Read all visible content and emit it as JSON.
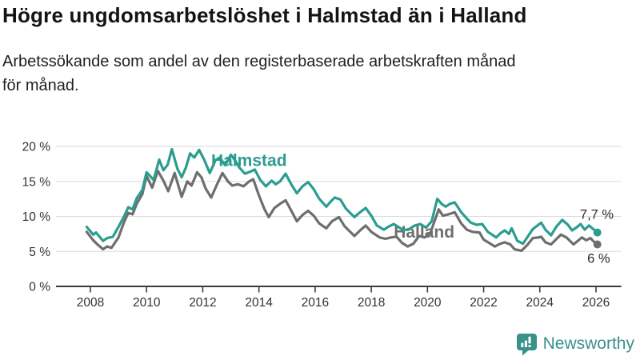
{
  "header": {
    "title": "Högre ungdomsarbetslöshet i Halmstad än i Halland",
    "subtitle": "Arbetssökande som andel av den registerbaserade arbetskraften månad för månad.",
    "subtitle_line1": "Arbetssökande som andel av den registerbaserade arbetskraften månad",
    "subtitle_line2": "för månad."
  },
  "chart_data": {
    "type": "line",
    "title": "Högre ungdomsarbetslöshet i Halmstad än i Halland",
    "subtitle": "Arbetssökande som andel av den registerbaserade arbetskraften månad för månad.",
    "unit": "percent of registered labour force",
    "grid": true,
    "legend_position": "inline-labels",
    "x_axis": {
      "range": [
        2007.8,
        2026.9
      ],
      "ticks": [
        2008,
        2010,
        2012,
        2014,
        2016,
        2018,
        2020,
        2022,
        2024,
        2026
      ]
    },
    "y_axis": {
      "range": [
        0,
        20
      ],
      "ticks": [
        0,
        5,
        10,
        15,
        20
      ],
      "tick_suffix": " %"
    },
    "colors": {
      "axis": "#3c3c3c",
      "gridline": "#dbdbdb",
      "halmstad": "#2a9d8f",
      "halland": "#6e6e6e"
    },
    "series": [
      {
        "name": "Halmstad",
        "color": "#2a9d8f",
        "latest_value": 7.7,
        "label": {
          "text": "Halmstad",
          "year": 2012.3,
          "value": 17.2,
          "anchor": "start"
        },
        "end_label": {
          "text": "7,7 %",
          "year": 2026.63,
          "value": 9.65,
          "anchor": "end"
        },
        "points": [
          [
            2007.87,
            8.5
          ],
          [
            2008.1,
            7.4
          ],
          [
            2008.2,
            7.7
          ],
          [
            2008.45,
            6.5
          ],
          [
            2008.6,
            6.9
          ],
          [
            2008.8,
            7.1
          ],
          [
            2009.0,
            8.5
          ],
          [
            2009.2,
            10.0
          ],
          [
            2009.35,
            11.3
          ],
          [
            2009.5,
            11.0
          ],
          [
            2009.65,
            12.6
          ],
          [
            2009.85,
            13.8
          ],
          [
            2010.0,
            16.3
          ],
          [
            2010.1,
            15.9
          ],
          [
            2010.25,
            15.2
          ],
          [
            2010.45,
            18.1
          ],
          [
            2010.6,
            16.6
          ],
          [
            2010.75,
            17.4
          ],
          [
            2010.9,
            19.6
          ],
          [
            2011.1,
            16.8
          ],
          [
            2011.25,
            15.6
          ],
          [
            2011.4,
            17.0
          ],
          [
            2011.55,
            19.0
          ],
          [
            2011.7,
            18.4
          ],
          [
            2011.87,
            19.5
          ],
          [
            2012.05,
            18.1
          ],
          [
            2012.25,
            16.2
          ],
          [
            2012.45,
            18.0
          ],
          [
            2012.6,
            18.4
          ],
          [
            2012.8,
            17.3
          ],
          [
            2013.0,
            18.8
          ],
          [
            2013.15,
            18.0
          ],
          [
            2013.3,
            17.0
          ],
          [
            2013.5,
            16.1
          ],
          [
            2013.7,
            16.4
          ],
          [
            2013.85,
            16.7
          ],
          [
            2014.05,
            15.2
          ],
          [
            2014.25,
            14.3
          ],
          [
            2014.45,
            15.1
          ],
          [
            2014.6,
            14.6
          ],
          [
            2014.75,
            15.0
          ],
          [
            2014.95,
            16.1
          ],
          [
            2015.15,
            14.6
          ],
          [
            2015.35,
            13.3
          ],
          [
            2015.55,
            14.3
          ],
          [
            2015.75,
            14.9
          ],
          [
            2015.95,
            13.9
          ],
          [
            2016.15,
            12.5
          ],
          [
            2016.4,
            11.4
          ],
          [
            2016.55,
            12.1
          ],
          [
            2016.7,
            12.7
          ],
          [
            2016.9,
            12.4
          ],
          [
            2017.1,
            11.1
          ],
          [
            2017.4,
            9.9
          ],
          [
            2017.6,
            10.6
          ],
          [
            2017.8,
            11.2
          ],
          [
            2018.0,
            10.1
          ],
          [
            2018.2,
            8.7
          ],
          [
            2018.45,
            8.1
          ],
          [
            2018.6,
            8.5
          ],
          [
            2018.8,
            8.9
          ],
          [
            2019.0,
            8.4
          ],
          [
            2019.15,
            8.0
          ],
          [
            2019.35,
            8.2
          ],
          [
            2019.55,
            8.7
          ],
          [
            2019.75,
            8.9
          ],
          [
            2019.95,
            8.4
          ],
          [
            2020.15,
            9.3
          ],
          [
            2020.35,
            12.5
          ],
          [
            2020.5,
            11.8
          ],
          [
            2020.65,
            11.4
          ],
          [
            2020.8,
            11.8
          ],
          [
            2020.97,
            12.0
          ],
          [
            2021.2,
            10.6
          ],
          [
            2021.4,
            9.7
          ],
          [
            2021.55,
            9.1
          ],
          [
            2021.75,
            8.8
          ],
          [
            2021.95,
            8.9
          ],
          [
            2022.15,
            7.8
          ],
          [
            2022.45,
            7.0
          ],
          [
            2022.6,
            7.6
          ],
          [
            2022.75,
            8.0
          ],
          [
            2022.9,
            7.5
          ],
          [
            2023.0,
            8.3
          ],
          [
            2023.2,
            6.5
          ],
          [
            2023.4,
            6.1
          ],
          [
            2023.55,
            7.0
          ],
          [
            2023.75,
            8.2
          ],
          [
            2023.95,
            8.8
          ],
          [
            2024.05,
            9.1
          ],
          [
            2024.2,
            8.1
          ],
          [
            2024.4,
            7.3
          ],
          [
            2024.6,
            8.6
          ],
          [
            2024.8,
            9.5
          ],
          [
            2025.0,
            8.8
          ],
          [
            2025.15,
            8.0
          ],
          [
            2025.3,
            8.4
          ],
          [
            2025.45,
            8.9
          ],
          [
            2025.6,
            8.1
          ],
          [
            2025.75,
            8.7
          ],
          [
            2025.9,
            8.2
          ],
          [
            2026.05,
            7.7
          ]
        ]
      },
      {
        "name": "Halland",
        "color": "#6e6e6e",
        "latest_value": 6.0,
        "label": {
          "text": "Halland",
          "year": 2018.8,
          "value": 7.0,
          "anchor": "start"
        },
        "end_label": {
          "text": "6 %",
          "year": 2026.5,
          "value": 3.35,
          "anchor": "end"
        },
        "points": [
          [
            2007.87,
            7.8
          ],
          [
            2008.1,
            6.6
          ],
          [
            2008.25,
            6.0
          ],
          [
            2008.45,
            5.3
          ],
          [
            2008.6,
            5.7
          ],
          [
            2008.75,
            5.5
          ],
          [
            2009.0,
            7.0
          ],
          [
            2009.2,
            9.2
          ],
          [
            2009.35,
            10.5
          ],
          [
            2009.5,
            10.3
          ],
          [
            2009.65,
            11.8
          ],
          [
            2009.85,
            13.2
          ],
          [
            2010.0,
            15.8
          ],
          [
            2010.2,
            14.1
          ],
          [
            2010.4,
            16.5
          ],
          [
            2010.6,
            15.1
          ],
          [
            2010.77,
            13.6
          ],
          [
            2011.0,
            16.2
          ],
          [
            2011.25,
            12.8
          ],
          [
            2011.45,
            15.0
          ],
          [
            2011.6,
            14.4
          ],
          [
            2011.8,
            16.3
          ],
          [
            2011.95,
            15.6
          ],
          [
            2012.1,
            14.0
          ],
          [
            2012.3,
            12.7
          ],
          [
            2012.5,
            14.5
          ],
          [
            2012.7,
            16.2
          ],
          [
            2012.9,
            15.0
          ],
          [
            2013.05,
            14.4
          ],
          [
            2013.25,
            14.6
          ],
          [
            2013.45,
            14.3
          ],
          [
            2013.65,
            15.0
          ],
          [
            2013.8,
            15.3
          ],
          [
            2014.0,
            13.0
          ],
          [
            2014.2,
            11.0
          ],
          [
            2014.35,
            9.9
          ],
          [
            2014.55,
            11.2
          ],
          [
            2014.75,
            11.8
          ],
          [
            2014.95,
            12.3
          ],
          [
            2015.1,
            11.2
          ],
          [
            2015.35,
            9.3
          ],
          [
            2015.55,
            10.2
          ],
          [
            2015.75,
            10.8
          ],
          [
            2015.95,
            10.1
          ],
          [
            2016.15,
            9.0
          ],
          [
            2016.4,
            8.3
          ],
          [
            2016.6,
            9.3
          ],
          [
            2016.85,
            9.9
          ],
          [
            2017.05,
            8.6
          ],
          [
            2017.4,
            7.2
          ],
          [
            2017.6,
            8.0
          ],
          [
            2017.8,
            8.7
          ],
          [
            2018.0,
            7.8
          ],
          [
            2018.3,
            7.0
          ],
          [
            2018.5,
            6.8
          ],
          [
            2018.7,
            7.0
          ],
          [
            2018.9,
            7.1
          ],
          [
            2019.1,
            6.2
          ],
          [
            2019.3,
            5.7
          ],
          [
            2019.5,
            6.1
          ],
          [
            2019.7,
            7.2
          ],
          [
            2019.9,
            7.0
          ],
          [
            2020.1,
            7.6
          ],
          [
            2020.4,
            11.0
          ],
          [
            2020.55,
            10.1
          ],
          [
            2020.75,
            10.3
          ],
          [
            2020.97,
            10.6
          ],
          [
            2021.2,
            9.0
          ],
          [
            2021.4,
            8.1
          ],
          [
            2021.6,
            7.8
          ],
          [
            2021.85,
            7.7
          ],
          [
            2022.0,
            6.7
          ],
          [
            2022.2,
            6.2
          ],
          [
            2022.4,
            5.7
          ],
          [
            2022.6,
            6.1
          ],
          [
            2022.75,
            6.3
          ],
          [
            2022.95,
            6.0
          ],
          [
            2023.1,
            5.3
          ],
          [
            2023.35,
            5.1
          ],
          [
            2023.55,
            5.9
          ],
          [
            2023.75,
            6.9
          ],
          [
            2023.95,
            7.0
          ],
          [
            2024.05,
            7.1
          ],
          [
            2024.2,
            6.3
          ],
          [
            2024.4,
            6.0
          ],
          [
            2024.6,
            6.8
          ],
          [
            2024.75,
            7.4
          ],
          [
            2024.95,
            7.0
          ],
          [
            2025.2,
            6.0
          ],
          [
            2025.35,
            6.5
          ],
          [
            2025.5,
            7.0
          ],
          [
            2025.65,
            6.6
          ],
          [
            2025.8,
            6.9
          ],
          [
            2025.95,
            6.3
          ],
          [
            2026.05,
            6.0
          ]
        ]
      }
    ]
  },
  "footer": {
    "brand": "Newsworthy",
    "brand_color": "#3a918a",
    "logo_icon": "bar-chart-speech-bubble-icon"
  }
}
